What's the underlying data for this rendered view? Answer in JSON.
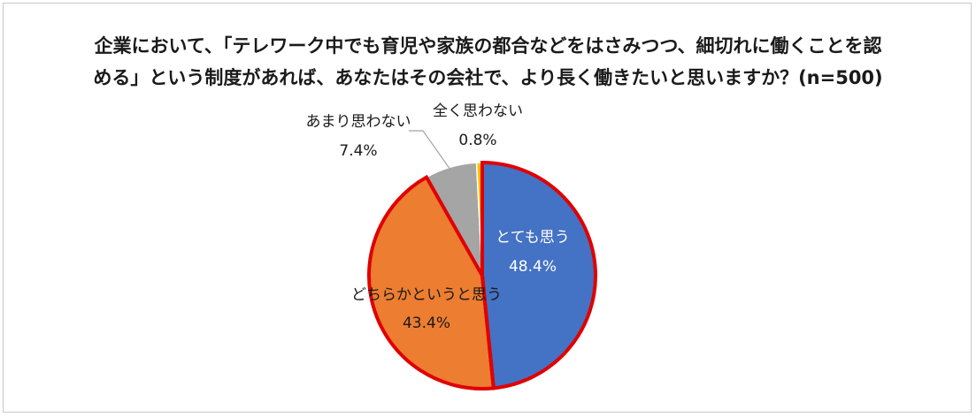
{
  "chart_data": {
    "type": "pie",
    "title_line1": "企業において、「テレワーク中でも育児や家族の都合などをはさみつつ、細切れに働くことを認",
    "title_line2": "める」という制度があれば、あなたはその会社で、より長く働きたいと思いますか？(n=500)",
    "slices": [
      {
        "label": "とても思う",
        "value": 48.4,
        "value_text": "48.4%",
        "color": "#4472c4"
      },
      {
        "label": "どちらかというと思う",
        "value": 43.4,
        "value_text": "43.4%",
        "color": "#ed7d31"
      },
      {
        "label": "あまり思わない",
        "value": 7.4,
        "value_text": "7.4%",
        "color": "#a5a5a5"
      },
      {
        "label": "全く思わない",
        "value": 0.8,
        "value_text": "0.8%",
        "color": "#ffc000"
      }
    ],
    "highlight_color": "#e00000",
    "highlighted_slices": [
      0,
      1
    ]
  }
}
